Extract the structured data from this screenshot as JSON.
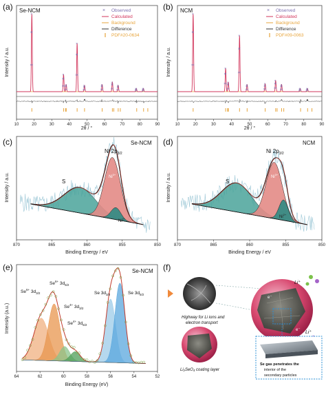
{
  "figure": {
    "panels": {
      "a": {
        "label": "(a)",
        "sample": "Se-NCM",
        "ylabel": "Intensity / a.u.",
        "xlabel": "2θ / °"
      },
      "b": {
        "label": "(b)",
        "sample": "NCM",
        "ylabel": "Intensity / a.u.",
        "xlabel": "2θ / °"
      },
      "c": {
        "label": "(c)",
        "sample": "Se-NCM",
        "ylabel": "Intensity / a.u.",
        "xlabel": "Binding Energy / eV",
        "peak": "Ni 2p",
        "peak_sub": "3/2",
        "s_label": "S",
        "ni3": "Ni",
        "ni3_sup": "3+",
        "ni2": "Ni",
        "ni2_sup": "2+"
      },
      "d": {
        "label": "(d)",
        "sample": "NCM",
        "ylabel": "Intensity / a.u.",
        "xlabel": "Binding Energy / eV",
        "peak": "Ni 2p",
        "peak_sub": "3/2",
        "s_label": "S",
        "ni3": "Ni",
        "ni3_sup": "3+",
        "ni2": "Ni",
        "ni2_sup": "2+"
      },
      "e": {
        "label": "(e)",
        "sample": "Se-NCM",
        "ylabel": "Intensity (a.u.)",
        "xlabel": "Binding Energy (eV)"
      },
      "f": {
        "label": "(f)"
      }
    },
    "xrd_legend_a": [
      "Observed",
      "Calculated",
      "Background",
      "Difference",
      "PDF#20-0634"
    ],
    "xrd_legend_b": [
      "Observed",
      "Calculated",
      "Background",
      "Difference",
      "PDF#09-0063"
    ],
    "e_labels": [
      {
        "pre": "Se",
        "sup": "6+",
        "post": " 3d",
        "sub": "3/2"
      },
      {
        "pre": "Se",
        "sup": "6+",
        "post": " 3d",
        "sub": "5/2"
      },
      {
        "pre": "Se",
        "sup": "4+",
        "post": " 3d",
        "sub": "3/2"
      },
      {
        "pre": "Se",
        "sup": "4+",
        "post": " 3d",
        "sub": "5/2"
      },
      {
        "pre": "Se",
        "sup": "",
        "post": " 3d",
        "sub": "3/2"
      },
      {
        "pre": "Se",
        "sup": "",
        "post": " 3d",
        "sub": "5/2"
      }
    ],
    "f_text": {
      "li_top": "Li⁺",
      "li_bottom": "Li⁺",
      "highway": [
        "Highway for Li ions and",
        "electron transport"
      ],
      "coating": "Li₂SeO₄ coating layer",
      "se_gas": [
        "Se gas  penetrates the",
        "interior of the",
        "secondary particles"
      ],
      "e_minus": "e⁻"
    },
    "colors": {
      "observed": "#7b6fb0",
      "calculated": "#d2355b",
      "background": "#e7a43b",
      "difference": "#333333",
      "pdf": "#e7a43b",
      "xps_raw": "#9cc7d6",
      "xps_fit": "#c0392b",
      "ni3_fill": "#e38b86",
      "ni2_fill": "#2f8b84",
      "sat_fill": "#4aa39a"
    }
  },
  "chart_data": [
    {
      "type": "line",
      "panel": "a",
      "xlim": [
        10,
        90
      ],
      "xticks": [
        10,
        20,
        30,
        40,
        50,
        60,
        70,
        80,
        90
      ],
      "peaks": [
        {
          "x": 18.7,
          "y": 100
        },
        {
          "x": 36.7,
          "y": 22
        },
        {
          "x": 38.2,
          "y": 9
        },
        {
          "x": 44.4,
          "y": 62
        },
        {
          "x": 48.6,
          "y": 8
        },
        {
          "x": 58.6,
          "y": 9
        },
        {
          "x": 64.4,
          "y": 12
        },
        {
          "x": 67.7,
          "y": 8
        },
        {
          "x": 78,
          "y": 4
        },
        {
          "x": 82,
          "y": 4
        }
      ],
      "ticks_pdf": [
        18.7,
        36.7,
        37.8,
        38.2,
        44.4,
        48.6,
        58.6,
        64.4,
        65.2,
        67.7,
        68.9,
        78.2,
        82.1,
        84.5
      ]
    },
    {
      "type": "line",
      "panel": "b",
      "xlim": [
        10,
        90
      ],
      "xticks": [
        10,
        20,
        30,
        40,
        50,
        60,
        70,
        80,
        90
      ],
      "peaks": [
        {
          "x": 18.7,
          "y": 100
        },
        {
          "x": 36.7,
          "y": 30
        },
        {
          "x": 38.2,
          "y": 12
        },
        {
          "x": 44.4,
          "y": 72
        },
        {
          "x": 48.6,
          "y": 9
        },
        {
          "x": 58.6,
          "y": 10
        },
        {
          "x": 64.4,
          "y": 14
        },
        {
          "x": 67.7,
          "y": 9
        },
        {
          "x": 78,
          "y": 4
        },
        {
          "x": 82,
          "y": 4
        }
      ],
      "ticks_pdf": [
        18.7,
        36.7,
        37.8,
        38.2,
        44.4,
        48.6,
        58.6,
        64.4,
        65.2,
        67.7,
        68.9,
        78.2,
        82.1,
        84.5
      ]
    },
    {
      "type": "area",
      "panel": "c",
      "xlim": [
        870,
        850
      ],
      "xticks": [
        870,
        865,
        860,
        855,
        850
      ],
      "components": [
        {
          "name": "Ni2+",
          "center": 855.9,
          "height": 14,
          "width": 1.0
        },
        {
          "name": "Ni3+",
          "center": 856.4,
          "height": 72,
          "width": 1.6
        },
        {
          "name": "S",
          "center": 861.0,
          "height": 30,
          "width": 3.2
        }
      ]
    },
    {
      "type": "area",
      "panel": "d",
      "xlim": [
        870,
        850
      ],
      "xticks": [
        870,
        865,
        860,
        855,
        850
      ],
      "components": [
        {
          "name": "Ni2+",
          "center": 855.3,
          "height": 24,
          "width": 0.9
        },
        {
          "name": "Ni3+",
          "center": 856.6,
          "height": 66,
          "width": 1.6
        },
        {
          "name": "S",
          "center": 861.8,
          "height": 34,
          "width": 3.0
        }
      ]
    },
    {
      "type": "area",
      "panel": "e",
      "xlim": [
        64,
        52
      ],
      "xticks": [
        64,
        62,
        60,
        58,
        56,
        54,
        52
      ],
      "components": [
        {
          "name": "Se6+ 3d3/2",
          "center": 61.9,
          "height": 52,
          "width": 0.9,
          "color": "#f0b080"
        },
        {
          "name": "Se6+ 3d5/2",
          "center": 60.8,
          "height": 70,
          "width": 0.7,
          "color": "#e8954e"
        },
        {
          "name": "Se4+ 3d3/2",
          "center": 59.9,
          "height": 18,
          "width": 0.6,
          "color": "#8bc48b"
        },
        {
          "name": "Se4+ 3d5/2",
          "center": 59.0,
          "height": 12,
          "width": 0.6,
          "color": "#4e9e5a"
        },
        {
          "name": "Se 3d3/2",
          "center": 56.0,
          "height": 78,
          "width": 0.6,
          "color": "#9ccbe8"
        },
        {
          "name": "Se 3d5/2",
          "center": 55.2,
          "height": 98,
          "width": 0.6,
          "color": "#5aa7dd"
        }
      ]
    }
  ]
}
